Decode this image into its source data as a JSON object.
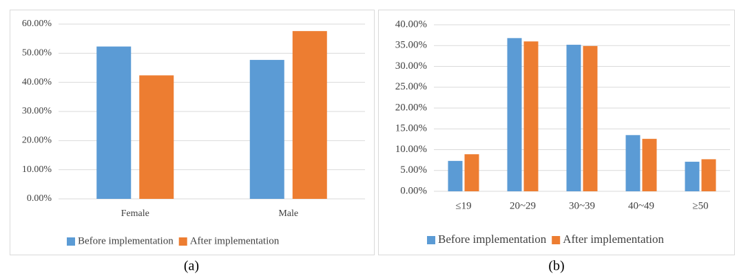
{
  "chart_data": [
    {
      "type": "bar",
      "caption": "(a)",
      "categories": [
        "Female",
        "Male"
      ],
      "series": [
        {
          "name": "Before implementation",
          "color": "#5b9bd5",
          "values": [
            52.3,
            47.7
          ]
        },
        {
          "name": "After implementation",
          "color": "#ed7d31",
          "values": [
            42.4,
            57.6
          ]
        }
      ],
      "ylim": [
        0,
        60
      ],
      "yticks": [
        {
          "value": 0,
          "label": "0.00%"
        },
        {
          "value": 10,
          "label": "10.00%"
        },
        {
          "value": 20,
          "label": "20.00%"
        },
        {
          "value": 30,
          "label": "30.00%"
        },
        {
          "value": 40,
          "label": "40.00%"
        },
        {
          "value": 50,
          "label": "50.00%"
        },
        {
          "value": 60,
          "label": "60.00%"
        }
      ],
      "grid": true,
      "legend": "bottom"
    },
    {
      "type": "bar",
      "caption": "(b)",
      "categories": [
        "≤19",
        "20~29",
        "30~39",
        "40~49",
        "≥50"
      ],
      "series": [
        {
          "name": "Before implementation",
          "color": "#5b9bd5",
          "values": [
            7.3,
            36.8,
            35.2,
            13.5,
            7.1
          ]
        },
        {
          "name": "After implementation",
          "color": "#ed7d31",
          "values": [
            8.9,
            36.0,
            34.9,
            12.6,
            7.7
          ]
        }
      ],
      "ylim": [
        0,
        40
      ],
      "yticks": [
        {
          "value": 0,
          "label": "0.00%"
        },
        {
          "value": 5,
          "label": "5.00%"
        },
        {
          "value": 10,
          "label": "10.00%"
        },
        {
          "value": 15,
          "label": "15.00%"
        },
        {
          "value": 20,
          "label": "20.00%"
        },
        {
          "value": 25,
          "label": "25.00%"
        },
        {
          "value": 30,
          "label": "30.00%"
        },
        {
          "value": 35,
          "label": "35.00%"
        },
        {
          "value": 40,
          "label": "40.00%"
        }
      ],
      "grid": true,
      "legend": "bottom"
    }
  ]
}
